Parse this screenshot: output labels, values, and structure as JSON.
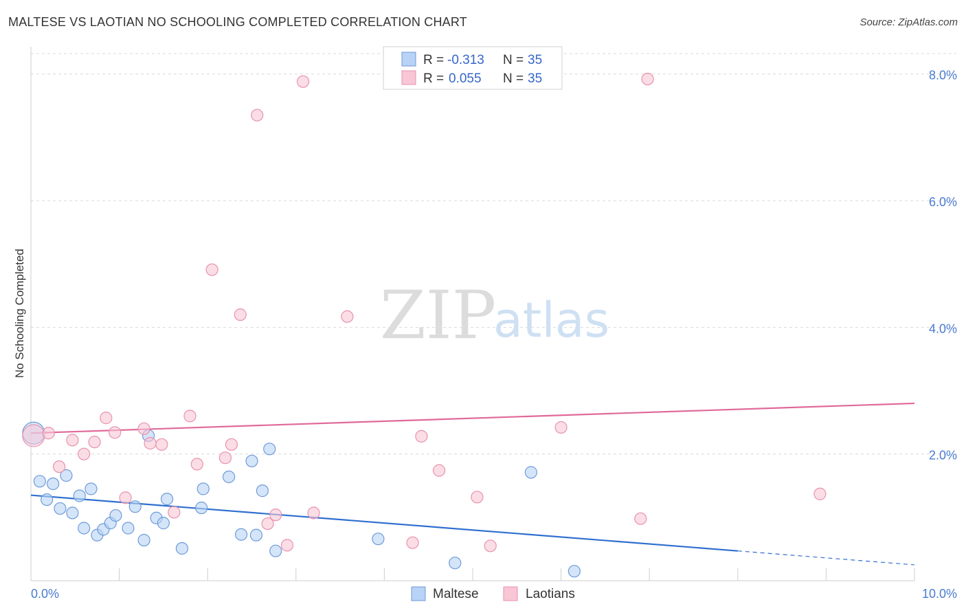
{
  "title": "MALTESE VS LAOTIAN NO SCHOOLING COMPLETED CORRELATION CHART",
  "source": "Source: ZipAtlas.com",
  "watermark": {
    "zip": "ZIP",
    "atlas": "atlas"
  },
  "colors": {
    "maltese_fill": "#b8d3f5",
    "maltese_stroke": "#6e9ad8",
    "maltese_line": "#2f6fd0",
    "laotian_fill": "#f9c6d6",
    "laotian_stroke": "#e792ad",
    "laotian_line": "#e0699a",
    "grid": "#d9d9d9",
    "tick_text": "#4a7bd0"
  },
  "legend": {
    "rows": [
      {
        "r_label": "R =",
        "r_value": "-0.313",
        "n_label": "N =",
        "n_value": "35"
      },
      {
        "r_label": "R =",
        "r_value": "0.055",
        "n_label": "N =",
        "n_value": "35"
      }
    ]
  },
  "bottom_legend": [
    "Maltese",
    "Laotians"
  ],
  "chart_data": {
    "type": "scatter",
    "title": "MALTESE VS LAOTIAN NO SCHOOLING COMPLETED CORRELATION CHART",
    "xlabel": "",
    "ylabel": "No Schooling Completed",
    "xlim": [
      0,
      10
    ],
    "ylim": [
      0,
      8.3
    ],
    "x_tick_labels": [
      "0.0%",
      "10.0%"
    ],
    "y_ticks": [
      2,
      4,
      6,
      8
    ],
    "y_tick_labels": [
      "2.0%",
      "4.0%",
      "6.0%",
      "8.0%"
    ],
    "grid": true,
    "series": [
      {
        "name": "Maltese",
        "r": -0.313,
        "n": 35,
        "trend": {
          "x": [
            0,
            8.0
          ],
          "y": [
            1.35,
            0.47
          ],
          "dashed_to": [
            10.0,
            0.25
          ]
        },
        "points": [
          {
            "x": 0.03,
            "y": 2.33,
            "big": true
          },
          {
            "x": 0.1,
            "y": 1.57
          },
          {
            "x": 0.18,
            "y": 1.28
          },
          {
            "x": 0.25,
            "y": 1.53
          },
          {
            "x": 0.33,
            "y": 1.14
          },
          {
            "x": 0.4,
            "y": 1.66
          },
          {
            "x": 0.47,
            "y": 1.07
          },
          {
            "x": 0.55,
            "y": 1.34
          },
          {
            "x": 0.6,
            "y": 0.83
          },
          {
            "x": 0.68,
            "y": 1.45
          },
          {
            "x": 0.75,
            "y": 0.72
          },
          {
            "x": 0.82,
            "y": 0.81
          },
          {
            "x": 0.9,
            "y": 0.91
          },
          {
            "x": 0.96,
            "y": 1.03
          },
          {
            "x": 1.1,
            "y": 0.83
          },
          {
            "x": 1.18,
            "y": 1.17
          },
          {
            "x": 1.28,
            "y": 0.64
          },
          {
            "x": 1.33,
            "y": 2.29
          },
          {
            "x": 1.42,
            "y": 0.99
          },
          {
            "x": 1.5,
            "y": 0.91
          },
          {
            "x": 1.54,
            "y": 1.29
          },
          {
            "x": 1.71,
            "y": 0.51
          },
          {
            "x": 1.93,
            "y": 1.15
          },
          {
            "x": 1.95,
            "y": 1.45
          },
          {
            "x": 2.24,
            "y": 1.64
          },
          {
            "x": 2.38,
            "y": 0.73
          },
          {
            "x": 2.5,
            "y": 1.89
          },
          {
            "x": 2.55,
            "y": 0.72
          },
          {
            "x": 2.62,
            "y": 1.42
          },
          {
            "x": 2.7,
            "y": 2.08
          },
          {
            "x": 2.77,
            "y": 0.47
          },
          {
            "x": 3.93,
            "y": 0.66
          },
          {
            "x": 4.8,
            "y": 0.28
          },
          {
            "x": 5.66,
            "y": 1.71
          },
          {
            "x": 6.15,
            "y": 0.15
          }
        ]
      },
      {
        "name": "Laotians",
        "r": 0.055,
        "n": 35,
        "trend": {
          "x": [
            0,
            10.0
          ],
          "y": [
            2.33,
            2.8
          ]
        },
        "points": [
          {
            "x": 0.03,
            "y": 2.29,
            "big": true
          },
          {
            "x": 0.2,
            "y": 2.33
          },
          {
            "x": 0.32,
            "y": 1.8
          },
          {
            "x": 0.47,
            "y": 2.22
          },
          {
            "x": 0.6,
            "y": 2.0
          },
          {
            "x": 0.72,
            "y": 2.19
          },
          {
            "x": 0.85,
            "y": 2.57
          },
          {
            "x": 0.95,
            "y": 2.34
          },
          {
            "x": 1.07,
            "y": 1.31
          },
          {
            "x": 1.28,
            "y": 2.4
          },
          {
            "x": 1.35,
            "y": 2.17
          },
          {
            "x": 1.48,
            "y": 2.15
          },
          {
            "x": 1.62,
            "y": 1.08
          },
          {
            "x": 1.8,
            "y": 2.6
          },
          {
            "x": 1.88,
            "y": 1.84
          },
          {
            "x": 2.05,
            "y": 4.91
          },
          {
            "x": 2.2,
            "y": 1.94
          },
          {
            "x": 2.27,
            "y": 2.15
          },
          {
            "x": 2.37,
            "y": 4.2
          },
          {
            "x": 2.56,
            "y": 7.35
          },
          {
            "x": 2.68,
            "y": 0.9
          },
          {
            "x": 2.77,
            "y": 1.04
          },
          {
            "x": 2.9,
            "y": 0.56
          },
          {
            "x": 3.08,
            "y": 7.88
          },
          {
            "x": 3.2,
            "y": 1.07
          },
          {
            "x": 3.58,
            "y": 4.17
          },
          {
            "x": 4.32,
            "y": 0.6
          },
          {
            "x": 4.42,
            "y": 2.28
          },
          {
            "x": 4.62,
            "y": 1.74
          },
          {
            "x": 5.05,
            "y": 1.32
          },
          {
            "x": 5.2,
            "y": 0.55
          },
          {
            "x": 6.0,
            "y": 2.42
          },
          {
            "x": 6.9,
            "y": 0.98
          },
          {
            "x": 6.98,
            "y": 7.92
          },
          {
            "x": 8.93,
            "y": 1.37
          }
        ]
      }
    ]
  }
}
